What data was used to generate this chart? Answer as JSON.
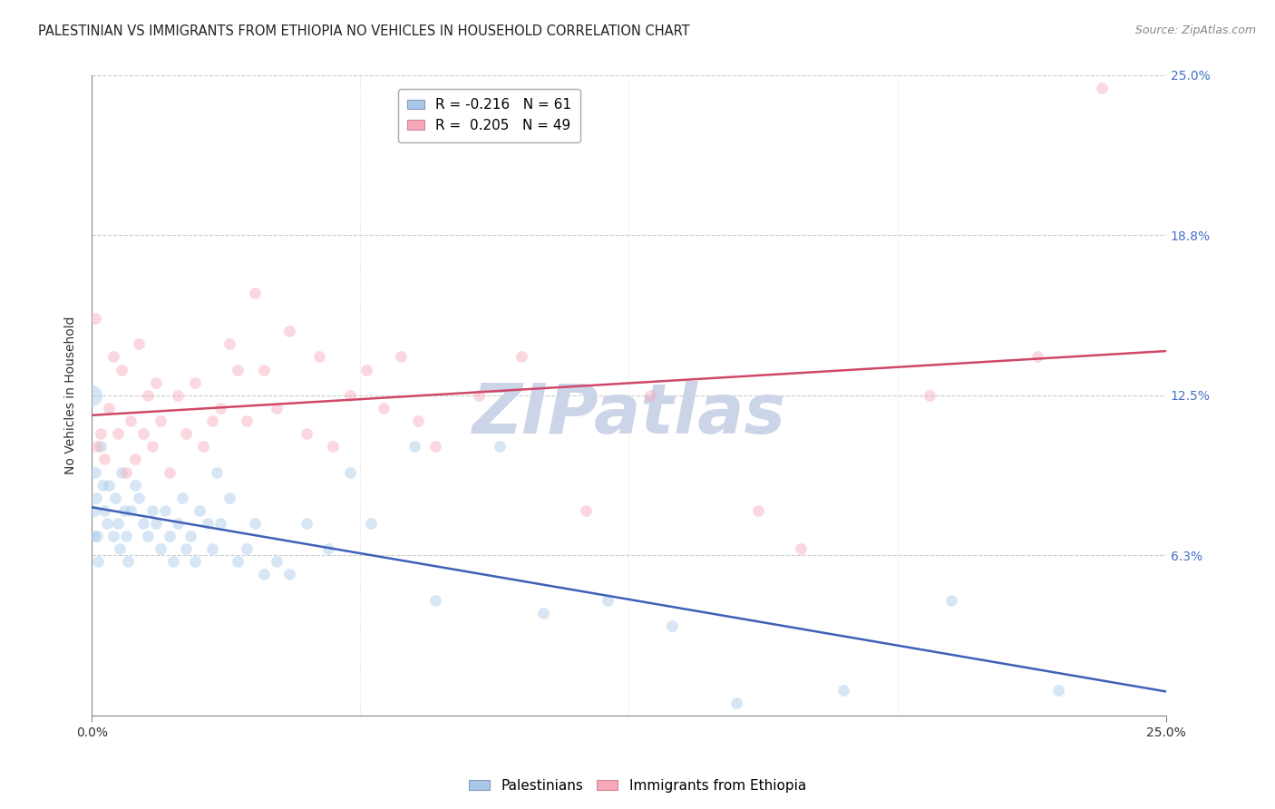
{
  "title": "PALESTINIAN VS IMMIGRANTS FROM ETHIOPIA NO VEHICLES IN HOUSEHOLD CORRELATION CHART",
  "source": "Source: ZipAtlas.com",
  "ylabel": "No Vehicles in Household",
  "xmin": 0.0,
  "xmax": 25.0,
  "ymin": 0.0,
  "ymax": 25.0,
  "yticks": [
    0.0,
    6.25,
    12.5,
    18.75,
    25.0
  ],
  "ytick_labels": [
    "",
    "6.3%",
    "12.5%",
    "18.8%",
    "25.0%"
  ],
  "xtick_labels": [
    "0.0%",
    "25.0%"
  ],
  "grid_color": "#cccccc",
  "background_color": "#ffffff",
  "blue_color": "#a8c8e8",
  "blue_line_color": "#4060b8",
  "pink_color": "#f8a8b8",
  "pink_line_color": "#d04868",
  "blue_R": -0.216,
  "blue_N": 61,
  "pink_R": 0.205,
  "pink_N": 49,
  "blue_name": "Palestinians",
  "pink_name": "Immigrants from Ethiopia",
  "blue_x": [
    0.05,
    0.05,
    0.08,
    0.1,
    0.12,
    0.15,
    0.2,
    0.25,
    0.3,
    0.35,
    0.4,
    0.5,
    0.55,
    0.6,
    0.65,
    0.7,
    0.75,
    0.8,
    0.85,
    0.9,
    1.0,
    1.1,
    1.2,
    1.3,
    1.4,
    1.5,
    1.6,
    1.7,
    1.8,
    1.9,
    2.0,
    2.1,
    2.2,
    2.3,
    2.4,
    2.5,
    2.7,
    2.8,
    2.9,
    3.0,
    3.2,
    3.4,
    3.6,
    3.8,
    4.0,
    4.3,
    4.6,
    5.0,
    5.5,
    6.0,
    6.5,
    7.5,
    8.0,
    9.5,
    10.5,
    12.0,
    13.5,
    15.0,
    17.5,
    20.0,
    22.5
  ],
  "blue_y": [
    8.0,
    7.0,
    9.5,
    8.5,
    7.0,
    6.0,
    10.5,
    9.0,
    8.0,
    7.5,
    9.0,
    7.0,
    8.5,
    7.5,
    6.5,
    9.5,
    8.0,
    7.0,
    6.0,
    8.0,
    9.0,
    8.5,
    7.5,
    7.0,
    8.0,
    7.5,
    6.5,
    8.0,
    7.0,
    6.0,
    7.5,
    8.5,
    6.5,
    7.0,
    6.0,
    8.0,
    7.5,
    6.5,
    9.5,
    7.5,
    8.5,
    6.0,
    6.5,
    7.5,
    5.5,
    6.0,
    5.5,
    7.5,
    6.5,
    9.5,
    7.5,
    10.5,
    4.5,
    10.5,
    4.0,
    4.5,
    3.5,
    0.5,
    1.0,
    4.5,
    1.0
  ],
  "blue_x_large": [
    0.0
  ],
  "blue_y_large": [
    12.5
  ],
  "pink_x": [
    0.08,
    0.12,
    0.2,
    0.3,
    0.4,
    0.5,
    0.6,
    0.7,
    0.8,
    0.9,
    1.0,
    1.1,
    1.2,
    1.3,
    1.4,
    1.5,
    1.6,
    1.8,
    2.0,
    2.2,
    2.4,
    2.6,
    2.8,
    3.0,
    3.2,
    3.4,
    3.6,
    3.8,
    4.0,
    4.3,
    4.6,
    5.0,
    5.3,
    5.6,
    6.0,
    6.4,
    6.8,
    7.2,
    7.6,
    8.0,
    9.0,
    10.0,
    11.5,
    13.0,
    15.5,
    16.5,
    19.5,
    22.0,
    23.5
  ],
  "pink_y": [
    15.5,
    10.5,
    11.0,
    10.0,
    12.0,
    14.0,
    11.0,
    13.5,
    9.5,
    11.5,
    10.0,
    14.5,
    11.0,
    12.5,
    10.5,
    13.0,
    11.5,
    9.5,
    12.5,
    11.0,
    13.0,
    10.5,
    11.5,
    12.0,
    14.5,
    13.5,
    11.5,
    16.5,
    13.5,
    12.0,
    15.0,
    11.0,
    14.0,
    10.5,
    12.5,
    13.5,
    12.0,
    14.0,
    11.5,
    10.5,
    12.5,
    14.0,
    8.0,
    12.5,
    8.0,
    6.5,
    12.5,
    14.0,
    24.5
  ],
  "marker_size": 85,
  "large_marker_size": 280,
  "marker_alpha": 0.45,
  "watermark_text": "ZIPatlas",
  "watermark_color": "#ccd5e8",
  "title_fontsize": 10.5,
  "tick_fontsize": 10,
  "source_fontsize": 9,
  "legend_fontsize": 11
}
